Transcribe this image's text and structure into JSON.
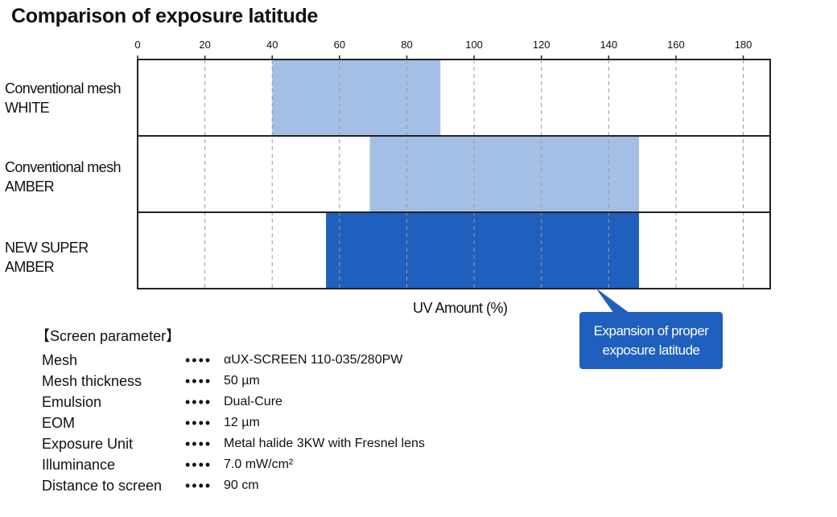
{
  "title": "Comparison of exposure latitude",
  "chart_data": {
    "type": "bar",
    "orientation": "horizontal-range",
    "title": "Comparison of exposure latitude",
    "xlabel": "UV Amount (%)",
    "ylabel": "",
    "xlim": [
      0,
      188
    ],
    "ticks": [
      0,
      20,
      40,
      60,
      80,
      100,
      120,
      140,
      160,
      180
    ],
    "tick_labels": [
      "0",
      "20",
      "40",
      "60",
      "80",
      "100",
      "120",
      "140",
      "160",
      "180"
    ],
    "grid": true,
    "categories": [
      {
        "line1": "Conventional mesh",
        "line2": "WHITE"
      },
      {
        "line1": "Conventional mesh",
        "line2": "AMBER"
      },
      {
        "line1": "NEW SUPER",
        "line2": "AMBER"
      }
    ],
    "ranges": [
      {
        "start": 40,
        "end": 90,
        "color": "#a4bfe5"
      },
      {
        "start": 69,
        "end": 149,
        "color": "#a4bfe5"
      },
      {
        "start": 56,
        "end": 149,
        "color": "#1f5fbd"
      }
    ]
  },
  "callout": {
    "line1": "Expansion of proper",
    "line2": "exposure latitude",
    "color": "#1f5fbd"
  },
  "params": {
    "heading": "【Screen parameter】",
    "dots": "••••",
    "rows": [
      {
        "name": "Mesh",
        "value": "αUX-SCREEN 110-035/280PW"
      },
      {
        "name": "Mesh thickness",
        "value": "50 µm"
      },
      {
        "name": "Emulsion",
        "value": "Dual-Cure"
      },
      {
        "name": "EOM",
        "value": "12 µm"
      },
      {
        "name": "Exposure Unit",
        "value": "Metal halide 3KW with Fresnel lens"
      },
      {
        "name": "Illuminance",
        "value": "7.0 mW/cm²"
      },
      {
        "name": "Distance to screen",
        "value": "90 cm"
      }
    ]
  }
}
